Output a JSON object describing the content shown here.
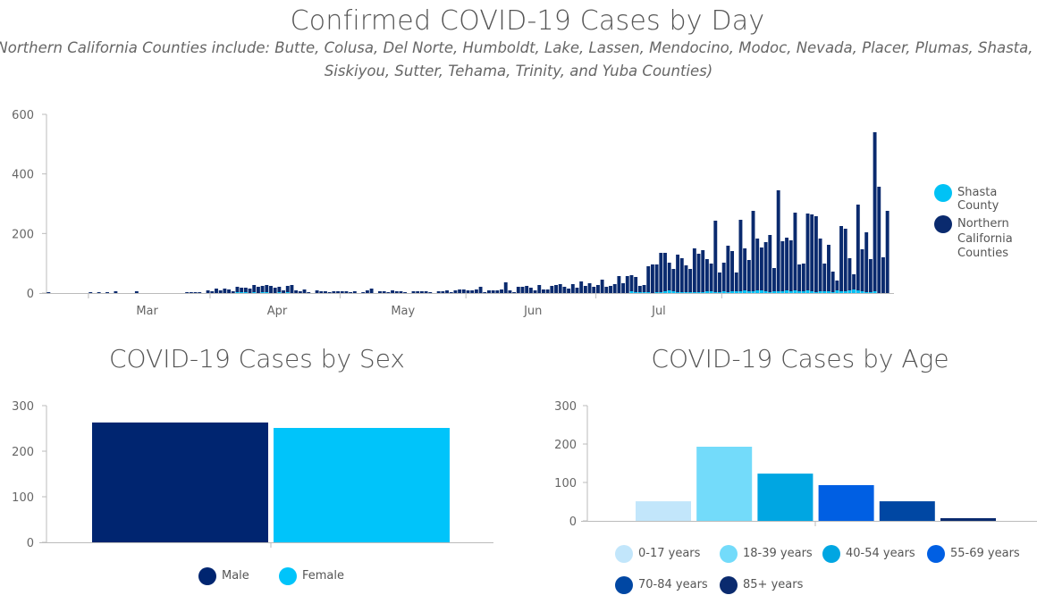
{
  "header": {
    "title": "Confirmed COVID-19 Cases by Day",
    "subtitle_line1": "(Northern California Counties include: Butte, Colusa, Del Norte, Humboldt, Lake, Lassen, Mendocino, Modoc, Nevada, Placer, Plumas, Shasta, Sierra,",
    "subtitle_line2": "Siskiyou, Sutter, Tehama, Trinity, and Yuba Counties)"
  },
  "colors": {
    "northern_ca": "#0a2a6e",
    "shasta": "#00c2f5",
    "male": "#002570",
    "female": "#00c4fa",
    "axis": "#bbbbbb",
    "tick_text": "#666666"
  },
  "chart_data": [
    {
      "type": "bar",
      "stacked": true,
      "title": "Confirmed COVID-19 Cases by Day",
      "xlabel": "",
      "ylabel": "",
      "ylim": [
        0,
        600
      ],
      "yticks": [
        0,
        200,
        400,
        600
      ],
      "x_start": "2020-02-05",
      "x_ticks": [
        "Mar",
        "Apr",
        "May",
        "Jun",
        "Jul"
      ],
      "legend": "right",
      "series": [
        {
          "name": "Northern California Counties",
          "values": [
            3,
            0,
            0,
            0,
            0,
            0,
            0,
            0,
            0,
            0,
            3,
            0,
            3,
            0,
            3,
            0,
            6,
            0,
            0,
            0,
            0,
            6,
            0,
            0,
            0,
            0,
            0,
            0,
            0,
            0,
            0,
            0,
            0,
            3,
            3,
            3,
            3,
            0,
            9,
            6,
            15,
            9,
            15,
            12,
            6,
            21,
            18,
            18,
            15,
            27,
            21,
            24,
            27,
            24,
            18,
            21,
            9,
            24,
            27,
            9,
            6,
            12,
            3,
            0,
            9,
            6,
            6,
            3,
            6,
            6,
            6,
            6,
            3,
            6,
            0,
            3,
            9,
            15,
            0,
            6,
            6,
            3,
            9,
            6,
            6,
            3,
            0,
            6,
            6,
            6,
            6,
            3,
            0,
            6,
            6,
            9,
            3,
            9,
            12,
            12,
            9,
            9,
            12,
            21,
            3,
            9,
            9,
            9,
            12,
            36,
            9,
            3,
            21,
            21,
            24,
            18,
            9,
            27,
            12,
            12,
            24,
            27,
            30,
            21,
            15,
            30,
            18,
            39,
            24,
            33,
            21,
            27,
            45,
            21,
            24,
            30,
            57,
            33,
            57,
            60,
            54,
            24,
            27,
            90,
            96,
            96,
            135,
            135,
            102,
            81,
            129,
            117,
            93,
            81,
            150,
            132,
            144,
            114,
            99,
            243,
            69,
            102,
            159,
            141,
            69,
            246,
            150,
            111,
            276,
            183,
            153,
            171,
            195,
            84,
            345,
            174,
            186,
            177,
            270,
            96,
            99,
            267,
            264,
            258,
            183,
            99,
            162,
            72,
            42,
            225,
            216,
            117,
            63,
            297,
            147,
            204,
            114,
            540,
            357,
            120,
            276
          ],
          "color_key": "northern_ca"
        },
        {
          "name": "Shasta County",
          "values": [
            0,
            0,
            0,
            0,
            0,
            0,
            0,
            0,
            0,
            0,
            0,
            0,
            0,
            0,
            0,
            0,
            0,
            0,
            0,
            0,
            0,
            0,
            0,
            0,
            0,
            0,
            0,
            0,
            0,
            0,
            0,
            0,
            0,
            0,
            0,
            0,
            0,
            0,
            0,
            0,
            0,
            0,
            0,
            0,
            0,
            3,
            3,
            3,
            0,
            3,
            0,
            3,
            3,
            0,
            0,
            3,
            0,
            3,
            0,
            0,
            0,
            0,
            0,
            0,
            0,
            0,
            0,
            0,
            0,
            0,
            0,
            0,
            0,
            0,
            0,
            0,
            0,
            0,
            0,
            0,
            0,
            0,
            0,
            0,
            0,
            0,
            0,
            0,
            0,
            0,
            0,
            0,
            0,
            0,
            0,
            0,
            0,
            0,
            0,
            0,
            0,
            0,
            0,
            0,
            0,
            0,
            0,
            0,
            0,
            0,
            0,
            0,
            0,
            0,
            0,
            0,
            0,
            0,
            0,
            0,
            0,
            0,
            0,
            0,
            0,
            0,
            0,
            0,
            0,
            0,
            0,
            0,
            0,
            0,
            0,
            0,
            0,
            0,
            0,
            6,
            3,
            3,
            3,
            3,
            0,
            3,
            3,
            6,
            9,
            6,
            3,
            3,
            3,
            3,
            3,
            3,
            3,
            6,
            6,
            3,
            3,
            6,
            3,
            6,
            6,
            6,
            9,
            6,
            6,
            9,
            9,
            6,
            3,
            6,
            6,
            6,
            9,
            6,
            9,
            6,
            6,
            9,
            6,
            3,
            6,
            6,
            6,
            3,
            9,
            6,
            6,
            9,
            12,
            9,
            6,
            3,
            3,
            6
          ],
          "color_key": "shasta"
        }
      ]
    },
    {
      "type": "bar",
      "title": "COVID-19 Cases by Sex",
      "categories": [
        "Male",
        "Female"
      ],
      "values": [
        263,
        251
      ],
      "ylim": [
        0,
        300
      ],
      "yticks": [
        0,
        100,
        200,
        300
      ],
      "legend": "bottom",
      "color_keys": [
        "male",
        "female"
      ]
    },
    {
      "type": "bar",
      "title": "COVID-19 Cases by Age",
      "categories": [
        "0-17 years",
        "18-39 years",
        "40-54 years",
        "55-69 years",
        "70-84 years",
        "85+ years"
      ],
      "values": [
        51,
        193,
        123,
        93,
        51,
        7
      ],
      "colors": [
        "#c2e6fb",
        "#73dbfa",
        "#00a6e2",
        "#005fe3",
        "#0047a3",
        "#0a2a6e"
      ],
      "ylim": [
        0,
        300
      ],
      "yticks": [
        0,
        100,
        200,
        300
      ],
      "legend": "bottom"
    }
  ]
}
